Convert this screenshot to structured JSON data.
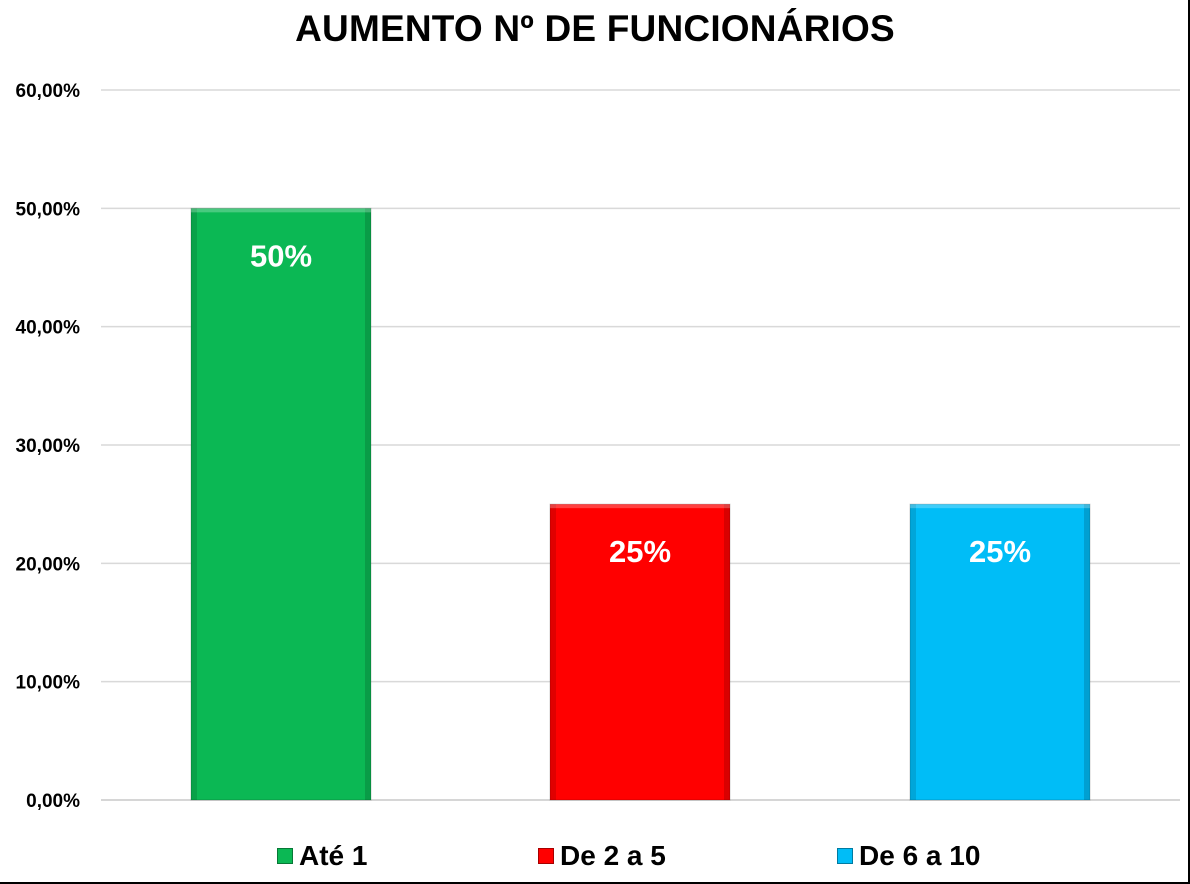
{
  "chart_data": {
    "type": "bar",
    "title": "AUMENTO Nº DE FUNCIONÁRIOS",
    "categories": [
      "Até 1",
      "De 2 a 5",
      "De 6 a 10"
    ],
    "values": [
      50,
      25,
      25
    ],
    "data_labels": [
      "50%",
      "25%",
      "25%"
    ],
    "colors": [
      "#0bb854",
      "#ff0000",
      "#00bdf7"
    ],
    "ylim": [
      0,
      60
    ],
    "yticks": [
      0,
      10,
      20,
      30,
      40,
      50,
      60
    ],
    "ytick_labels": [
      "0,00%",
      "10,00%",
      "20,00%",
      "30,00%",
      "40,00%",
      "50,00%",
      "60,00%"
    ],
    "grid": true,
    "legend_position": "bottom",
    "xlabel": "",
    "ylabel": ""
  }
}
